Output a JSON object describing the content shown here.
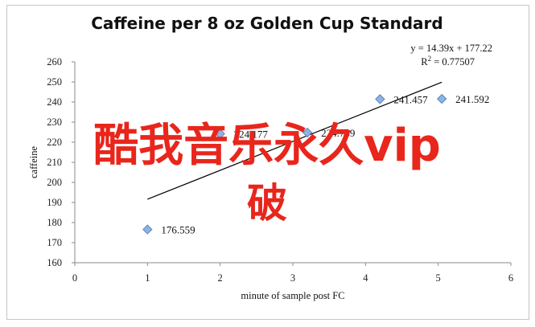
{
  "chart_data": {
    "type": "scatter",
    "title": "Caffeine per 8 oz Golden Cup Standard",
    "xlabel": "minute of sample post FC",
    "ylabel": "caffeine",
    "xlim": [
      0,
      6
    ],
    "ylim": [
      160,
      260
    ],
    "x_ticks": [
      0,
      1,
      2,
      3,
      4,
      5,
      6
    ],
    "y_ticks": [
      160,
      170,
      180,
      190,
      200,
      210,
      220,
      230,
      240,
      250,
      260
    ],
    "grid": false,
    "legend": "none",
    "points": [
      {
        "x": 1,
        "y": 176.559,
        "label": "176.559"
      },
      {
        "x": 2,
        "y": 224.177,
        "label": "224.177"
      },
      {
        "x": 3.2,
        "y": 224.789,
        "label": "224.789"
      },
      {
        "x": 4.2,
        "y": 241.457,
        "label": "241.457"
      },
      {
        "x": 5.05,
        "y": 241.592,
        "label": "241.592"
      }
    ],
    "trendline": {
      "slope": 14.39,
      "intercept": 177.22,
      "x_range": [
        1,
        5.05
      ],
      "equation": "y = 14.39x + 177.22",
      "r2_prefix": "R",
      "r2_sup": "2",
      "r2_value": " = 0.77507"
    },
    "marker_color": "#8db4e2",
    "marker_stroke": "#5a86bd",
    "line_color": "#000000"
  },
  "overlay": {
    "line1": "酷我音乐永久vip",
    "line2": "破",
    "color": "#e8261c"
  }
}
